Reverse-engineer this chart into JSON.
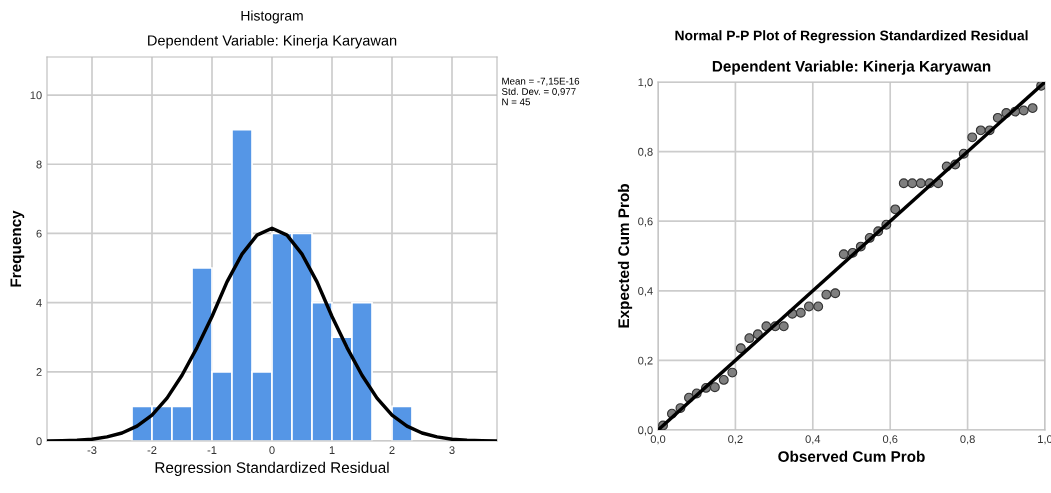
{
  "chart_data": [
    {
      "type": "histogram",
      "title": "Histogram",
      "subtitle": "Dependent Variable: Kinerja Karyawan",
      "xlabel": "Regression Standardized Residual",
      "ylabel": "Frequency",
      "bins": [
        -2.333,
        -2.0,
        -1.667,
        -1.333,
        -1.0,
        -0.667,
        -0.333,
        0.0,
        0.333,
        0.667,
        1.0,
        1.333,
        1.667,
        2.0,
        2.333
      ],
      "values": [
        1,
        1,
        1,
        5,
        2,
        9,
        2,
        6,
        6,
        4,
        3,
        4,
        0,
        1
      ],
      "color": "#5596e6",
      "series": [
        {
          "type": "line",
          "color": "#000000",
          "x": [
            -3.75,
            -3.5,
            -3.25,
            -3.0,
            -2.75,
            -2.5,
            -2.25,
            -2.0,
            -1.75,
            -1.5,
            -1.25,
            -1.0,
            -0.75,
            -0.5,
            -0.25,
            0.0,
            0.25,
            0.5,
            0.75,
            1.0,
            1.25,
            1.5,
            1.75,
            2.0,
            2.25,
            2.5,
            2.75,
            3.0,
            3.25,
            3.5,
            3.75
          ],
          "values": [
            0.0,
            0.01,
            0.02,
            0.05,
            0.12,
            0.23,
            0.43,
            0.75,
            1.24,
            1.9,
            2.7,
            3.6,
            4.6,
            5.4,
            5.95,
            6.15,
            5.95,
            5.4,
            4.6,
            3.6,
            2.7,
            1.9,
            1.24,
            0.75,
            0.43,
            0.23,
            0.12,
            0.05,
            0.02,
            0.01,
            0.0
          ]
        }
      ],
      "xlim": [
        -3.75,
        3.75
      ],
      "xticks": [
        -3,
        -2,
        -1,
        0,
        1,
        2,
        3
      ],
      "ylim": [
        0,
        11.1
      ],
      "yticks": [
        0,
        2,
        4,
        6,
        8,
        10
      ],
      "grid": true,
      "annotations": [
        "Mean = -7,15E-16",
        "Std. Dev. = 0,977",
        "N = 45"
      ]
    },
    {
      "type": "scatter",
      "title": "Normal P-P Plot of Regression Standardized Residual",
      "subtitle": "Dependent Variable: Kinerja Karyawan",
      "xlabel": "Observed Cum Prob",
      "ylabel": "Expected Cum Prob",
      "series": [
        {
          "type": "scatter",
          "color": "#7f7f7f",
          "marker": "circle",
          "x": [
            0.013,
            0.036,
            0.058,
            0.08,
            0.1,
            0.124,
            0.147,
            0.17,
            0.192,
            0.214,
            0.236,
            0.258,
            0.28,
            0.303,
            0.325,
            0.347,
            0.369,
            0.39,
            0.414,
            0.435,
            0.458,
            0.48,
            0.503,
            0.524,
            0.547,
            0.569,
            0.59,
            0.613,
            0.635,
            0.657,
            0.679,
            0.702,
            0.724,
            0.746,
            0.768,
            0.79,
            0.812,
            0.834,
            0.857,
            0.878,
            0.9,
            0.923,
            0.945,
            0.968,
            0.99
          ],
          "values": [
            0.013,
            0.047,
            0.063,
            0.093,
            0.105,
            0.121,
            0.123,
            0.144,
            0.165,
            0.235,
            0.264,
            0.275,
            0.298,
            0.298,
            0.298,
            0.334,
            0.337,
            0.355,
            0.355,
            0.389,
            0.393,
            0.505,
            0.509,
            0.527,
            0.552,
            0.571,
            0.59,
            0.634,
            0.709,
            0.709,
            0.709,
            0.709,
            0.709,
            0.757,
            0.763,
            0.794,
            0.841,
            0.861,
            0.861,
            0.897,
            0.911,
            0.915,
            0.918,
            0.925,
            0.989
          ]
        },
        {
          "type": "line",
          "color": "#000000",
          "x": [
            0.0,
            1.0
          ],
          "values": [
            0.0,
            1.0
          ]
        }
      ],
      "xlim": [
        0,
        1
      ],
      "ylim": [
        0,
        1
      ],
      "xticks": [
        {
          "value": 0,
          "label": "0,0"
        },
        {
          "value": 0.2,
          "label": "0,2"
        },
        {
          "value": 0.4,
          "label": "0,4"
        },
        {
          "value": 0.6,
          "label": "0,6"
        },
        {
          "value": 0.8,
          "label": "0,8"
        },
        {
          "value": 1,
          "label": "1,0"
        }
      ],
      "yticks": [
        {
          "value": 0,
          "label": "0,0"
        },
        {
          "value": 0.2,
          "label": "0,2"
        },
        {
          "value": 0.4,
          "label": "0,4"
        },
        {
          "value": 0.6,
          "label": "0,6"
        },
        {
          "value": 0.8,
          "label": "0,8"
        },
        {
          "value": 1,
          "label": "1,0"
        }
      ],
      "grid": true
    }
  ]
}
